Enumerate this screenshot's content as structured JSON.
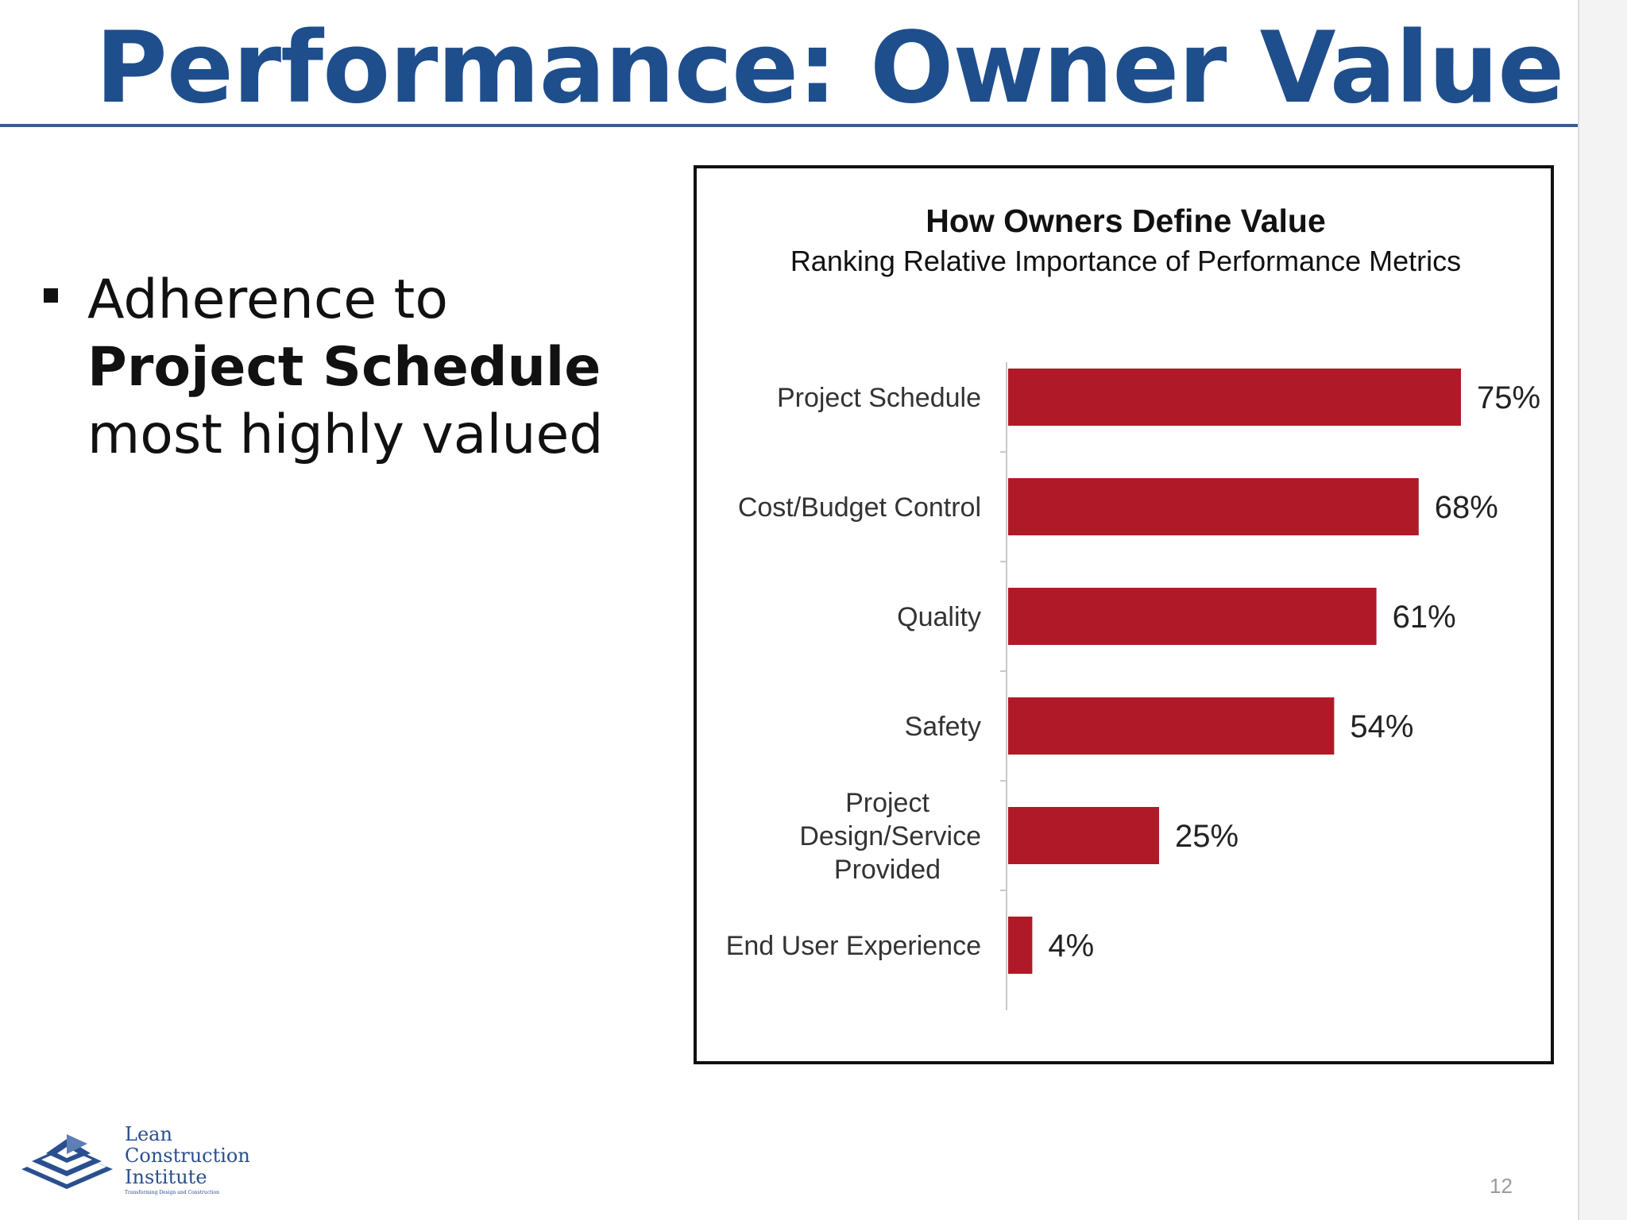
{
  "slide": {
    "title": "Performance: Owner Value",
    "bullet": {
      "line1": "Adherence to",
      "line2": "Project Schedule",
      "line3": "most highly valued"
    },
    "page_number": "12"
  },
  "logo": {
    "line1": "Lean",
    "line2": "Construction",
    "line3": "Institute",
    "tagline": "Transforming Design and Construction"
  },
  "colors": {
    "title": "#1f4e8c",
    "bar": "#b01a28",
    "logo": "#2a4f8f"
  },
  "chart_data": {
    "type": "bar",
    "orientation": "horizontal",
    "title": "How Owners Define Value",
    "subtitle": "Ranking Relative Importance of Performance Metrics",
    "categories": [
      [
        "Project Schedule"
      ],
      [
        "Cost/Budget Control"
      ],
      [
        "Quality"
      ],
      [
        "Safety"
      ],
      [
        "Project",
        "Design/Service",
        "Provided"
      ],
      [
        "End User Experience"
      ]
    ],
    "values": [
      75,
      68,
      61,
      54,
      25,
      4
    ],
    "value_labels": [
      "75%",
      "68%",
      "61%",
      "54%",
      "25%",
      "4%"
    ],
    "unit": "%",
    "xlim": [
      0,
      100
    ],
    "grid": false,
    "legend": "none"
  }
}
